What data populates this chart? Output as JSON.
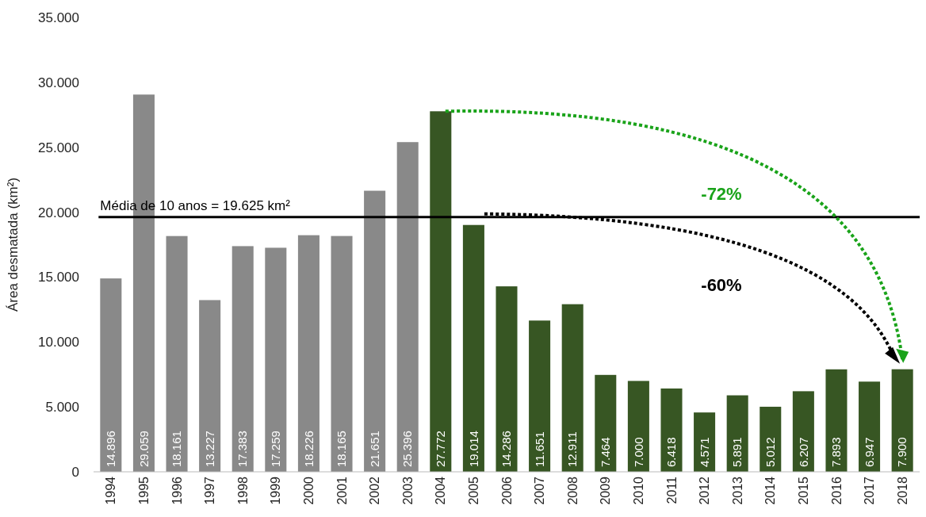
{
  "chart_data": {
    "type": "bar",
    "ylabel": "Área desmatada (km²)",
    "categories": [
      "1994",
      "1995",
      "1996",
      "1997",
      "1998",
      "1999",
      "2000",
      "2001",
      "2002",
      "2003",
      "2004",
      "2005",
      "2006",
      "2007",
      "2008",
      "2009",
      "2010",
      "2011",
      "2012",
      "2013",
      "2014",
      "2015",
      "2016",
      "2017",
      "2018"
    ],
    "values": [
      14896,
      29059,
      18161,
      13227,
      17383,
      17259,
      18226,
      18165,
      21651,
      25396,
      27772,
      19014,
      14286,
      11651,
      12911,
      7464,
      7000,
      6418,
      4571,
      5891,
      5012,
      6207,
      7893,
      6947,
      7900
    ],
    "colors": [
      "#898989",
      "#898989",
      "#898989",
      "#898989",
      "#898989",
      "#898989",
      "#898989",
      "#898989",
      "#898989",
      "#898989",
      "#375623",
      "#375623",
      "#375623",
      "#375623",
      "#375623",
      "#375623",
      "#375623",
      "#375623",
      "#375623",
      "#375623",
      "#375623",
      "#375623",
      "#375623",
      "#375623",
      "#375623"
    ],
    "ylim": [
      0,
      35000
    ],
    "yticks": [
      0,
      {
        "value": 5000,
        "label": "5.000"
      },
      {
        "value": 10000,
        "label": "10.000"
      },
      {
        "value": 15000,
        "label": "15.000"
      },
      {
        "value": 20000,
        "label": "20.000"
      },
      {
        "value": 25000,
        "label": "25.000"
      },
      {
        "value": 30000,
        "label": "30.000"
      },
      {
        "value": 35000,
        "label": "35.000"
      }
    ],
    "ref_lines": [
      {
        "axis": "y",
        "value": 19625,
        "label": "Média de 10 anos = 19.625 km²",
        "color": "#000000"
      }
    ],
    "annotations": [
      "-72%",
      "-60%"
    ],
    "value_labels": [
      "14.896",
      "29.059",
      "18.161",
      "13.227",
      "17.383",
      "17.259",
      "18.226",
      "18.165",
      "21.651",
      "25.396",
      "27.772",
      "19.014",
      "14.286",
      "11.651",
      "12.911",
      "7.464",
      "7.000",
      "6.418",
      "4.571",
      "5.891",
      "5.012",
      "6.207",
      "7.893",
      "6.947",
      "7.900"
    ],
    "grid": false
  }
}
